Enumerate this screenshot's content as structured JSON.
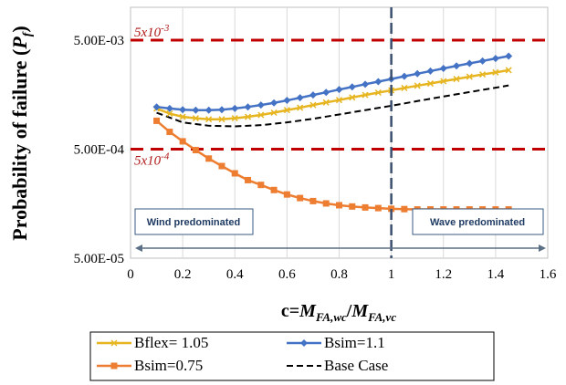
{
  "chart_data": {
    "type": "line",
    "title": "",
    "xlabel": "c=M_FA,wc/M_FA,vc",
    "xlabel_parts": {
      "lead": "c=",
      "m1": "M",
      "sub1": "FA,wc",
      "slash": "/",
      "m2": "M",
      "sub2": "FA,vc"
    },
    "ylabel": "Probability of failure (P_f)",
    "ylabel_parts": {
      "lead": "Probability of failure (",
      "p": "P",
      "sub": "f",
      "tail": ")"
    },
    "xlim": [
      0,
      1.6
    ],
    "ylim_log10": [
      -4.301,
      -2.0
    ],
    "y_scale": "log",
    "x_ticks": [
      "0",
      "0.2",
      "0.4",
      "0.6",
      "0.8",
      "1",
      "1.2",
      "1.4",
      "1.6"
    ],
    "x_tick_values": [
      0,
      0.2,
      0.4,
      0.6,
      0.8,
      1.0,
      1.2,
      1.4,
      1.6
    ],
    "y_ticks": [
      "5.00E-03",
      "5.00E-04",
      "5.00E-05"
    ],
    "y_tick_values": [
      0.005,
      0.0005,
      5e-05
    ],
    "grid": "vertical",
    "thresholds": [
      {
        "value": 0.005,
        "label": "5x10",
        "exp": "-3",
        "color": "#c00000"
      },
      {
        "value": 0.0005,
        "label": "5x10",
        "exp": "-4",
        "color": "#c00000"
      }
    ],
    "divider_x": 1.0,
    "region_labels": {
      "left": "Wind predominated",
      "right": "Wave predominated"
    },
    "legend_position": "bottom",
    "series": [
      {
        "name": "Bflex= 1.05",
        "color": "#e6b520",
        "marker": "x",
        "x": [
          0.1,
          0.15,
          0.2,
          0.25,
          0.3,
          0.35,
          0.4,
          0.45,
          0.5,
          0.55,
          0.6,
          0.65,
          0.7,
          0.75,
          0.8,
          0.85,
          0.9,
          0.95,
          1.0,
          1.05,
          1.1,
          1.15,
          1.2,
          1.25,
          1.3,
          1.35,
          1.4,
          1.45
        ],
        "values": [
          0.00118,
          0.00106,
          0.00099,
          0.00096,
          0.00094,
          0.00094,
          0.00096,
          0.00099,
          0.00103,
          0.00108,
          0.00114,
          0.0012,
          0.00127,
          0.00134,
          0.00141,
          0.00149,
          0.00157,
          0.00165,
          0.00173,
          0.00182,
          0.00191,
          0.002,
          0.0021,
          0.0022,
          0.00231,
          0.00242,
          0.00253,
          0.00265
        ]
      },
      {
        "name": "Bsim=1.1",
        "color": "#4472c4",
        "marker": "diamond",
        "x": [
          0.1,
          0.15,
          0.2,
          0.25,
          0.3,
          0.35,
          0.4,
          0.45,
          0.5,
          0.55,
          0.6,
          0.65,
          0.7,
          0.75,
          0.8,
          0.85,
          0.9,
          0.95,
          1.0,
          1.05,
          1.1,
          1.15,
          1.2,
          1.25,
          1.3,
          1.35,
          1.4,
          1.45
        ],
        "values": [
          0.00122,
          0.00118,
          0.00115,
          0.00114,
          0.00114,
          0.00115,
          0.00118,
          0.00122,
          0.00127,
          0.00133,
          0.0014,
          0.00148,
          0.00157,
          0.00166,
          0.00176,
          0.00186,
          0.00197,
          0.00208,
          0.0022,
          0.00233,
          0.00246,
          0.0026,
          0.00275,
          0.0029,
          0.00306,
          0.00322,
          0.00339,
          0.00357
        ]
      },
      {
        "name": "Bsim=0.75",
        "color": "#ed7d31",
        "marker": "square",
        "x": [
          0.1,
          0.15,
          0.2,
          0.25,
          0.3,
          0.35,
          0.4,
          0.45,
          0.5,
          0.55,
          0.6,
          0.65,
          0.7,
          0.75,
          0.8,
          0.85,
          0.9,
          0.95,
          1.0,
          1.05,
          1.1,
          1.15,
          1.2,
          1.25,
          1.3,
          1.35,
          1.4,
          1.45
        ],
        "values": [
          0.00091,
          0.00072,
          0.00059,
          0.00049,
          0.00041,
          0.00035,
          0.0003,
          0.00026,
          0.000235,
          0.000211,
          0.000192,
          0.000178,
          0.000167,
          0.000159,
          0.000153,
          0.000149,
          0.000146,
          0.000144,
          0.000142,
          0.000141,
          0.00014,
          0.00014,
          0.00014,
          0.00014,
          0.00014,
          0.00014,
          0.00014,
          0.00014
        ]
      },
      {
        "name": "Base Case",
        "color": "#000000",
        "marker": "none",
        "dash": true,
        "x": [
          0.1,
          0.2,
          0.3,
          0.4,
          0.5,
          0.6,
          0.7,
          0.8,
          0.9,
          1.0,
          1.1,
          1.2,
          1.3,
          1.4,
          1.45
        ],
        "values": [
          0.00108,
          0.00088,
          0.00082,
          0.00081,
          0.00083,
          0.00088,
          0.00095,
          0.00104,
          0.00114,
          0.00125,
          0.00138,
          0.00152,
          0.00167,
          0.00183,
          0.00192
        ]
      }
    ]
  }
}
